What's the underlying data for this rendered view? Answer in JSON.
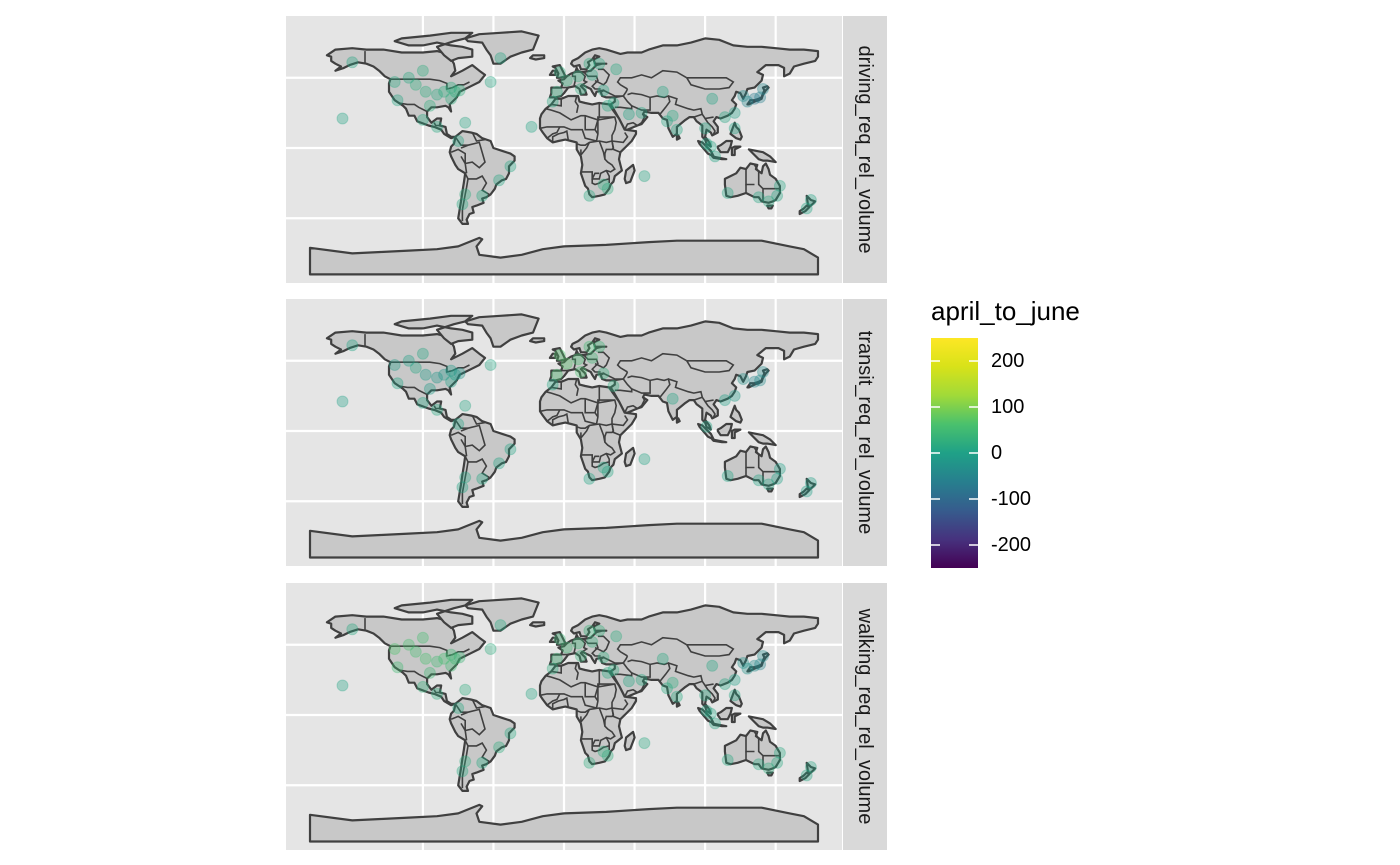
{
  "chart_data": {
    "type": "scatter",
    "subtype": "faceted-world-map-points",
    "facets": [
      {
        "label": "driving_req_rel_volume"
      },
      {
        "label": "transit_req_rel_volume"
      },
      {
        "label": "walking_req_rel_volume"
      }
    ],
    "color_scale": {
      "title": "april_to_june",
      "palette": "viridis",
      "limits": [
        -250,
        250
      ],
      "breaks": [
        200,
        100,
        0,
        -100,
        -200
      ],
      "break_labels": [
        "200",
        "100",
        "0",
        "-100",
        "-200"
      ]
    },
    "colors": {
      "panel_background": "#e5e5e5",
      "strip_background": "#d9d9d9",
      "land_fill": "#c8c8c8",
      "land_outline": "#404040",
      "grid": "#ffffff"
    },
    "point_alpha": 0.35,
    "series": [
      {
        "name": "driving_req_rel_volume",
        "points": [
          [
            -105,
            45,
            25
          ],
          [
            -98,
            40,
            20
          ],
          [
            -90,
            38,
            18
          ],
          [
            -120,
            47,
            15
          ],
          [
            -85,
            40,
            22
          ],
          [
            -77,
            40,
            30
          ],
          [
            -74,
            41,
            25
          ],
          [
            -80,
            35,
            20
          ],
          [
            -95,
            30,
            25
          ],
          [
            -118,
            34,
            10
          ],
          [
            -110,
            50,
            15
          ],
          [
            -80,
            43,
            20
          ],
          [
            -100,
            55,
            20
          ],
          [
            -100,
            20,
            15
          ],
          [
            -90,
            15,
            15
          ],
          [
            -70,
            18,
            10
          ],
          [
            -75,
            5,
            10
          ],
          [
            -46,
            -23,
            10
          ],
          [
            -58,
            -34,
            15
          ],
          [
            -70,
            -33,
            20
          ],
          [
            -72,
            -40,
            15
          ],
          [
            -38,
            -13,
            10
          ],
          [
            -157,
            21,
            5
          ],
          [
            -150,
            61,
            10
          ],
          [
            -52,
            47,
            10
          ],
          [
            -45,
            64,
            10
          ],
          [
            -5,
            40,
            25
          ],
          [
            2,
            48,
            30
          ],
          [
            10,
            51,
            25
          ],
          [
            12,
            42,
            20
          ],
          [
            -3,
            54,
            25
          ],
          [
            20,
            52,
            15
          ],
          [
            18,
            60,
            20
          ],
          [
            25,
            60,
            15
          ],
          [
            28,
            41,
            10
          ],
          [
            35,
            32,
            15
          ],
          [
            46,
            24,
            5
          ],
          [
            55,
            25,
            10
          ],
          [
            31,
            30,
            15
          ],
          [
            -23,
            15,
            5
          ],
          [
            -8,
            33,
            15
          ],
          [
            28,
            -26,
            20
          ],
          [
            18,
            -34,
            15
          ],
          [
            31,
            -29,
            20
          ],
          [
            57,
            -20,
            10
          ],
          [
            77,
            23,
            15
          ],
          [
            73,
            19,
            10
          ],
          [
            80,
            13,
            10
          ],
          [
            100,
            14,
            10
          ],
          [
            101,
            3,
            5
          ],
          [
            104,
            1,
            10
          ],
          [
            107,
            -6,
            5
          ],
          [
            121,
            14,
            5
          ],
          [
            121,
            25,
            0
          ],
          [
            114,
            22,
            10
          ],
          [
            127,
            37,
            -40
          ],
          [
            139,
            36,
            -60
          ],
          [
            135,
            35,
            -70
          ],
          [
            130,
            33,
            -50
          ],
          [
            141,
            42,
            -50
          ],
          [
            151,
            -34,
            10
          ],
          [
            145,
            -38,
            15
          ],
          [
            153,
            -27,
            10
          ],
          [
            138,
            -35,
            10
          ],
          [
            116,
            -32,
            10
          ],
          [
            175,
            -37,
            5
          ],
          [
            172,
            -43,
            5
          ],
          [
            105,
            35,
            5
          ],
          [
            70,
            40,
            10
          ],
          [
            37,
            56,
            15
          ]
        ]
      },
      {
        "name": "transit_req_rel_volume",
        "points": [
          [
            -105,
            45,
            10
          ],
          [
            -98,
            40,
            -10
          ],
          [
            -90,
            38,
            -20
          ],
          [
            -120,
            47,
            -10
          ],
          [
            -85,
            40,
            -20
          ],
          [
            -77,
            40,
            -10
          ],
          [
            -74,
            41,
            -20
          ],
          [
            -80,
            35,
            0
          ],
          [
            -95,
            30,
            -10
          ],
          [
            -118,
            34,
            5
          ],
          [
            -110,
            50,
            0
          ],
          [
            -80,
            43,
            -10
          ],
          [
            -100,
            55,
            10
          ],
          [
            -100,
            20,
            10
          ],
          [
            -90,
            15,
            15
          ],
          [
            -70,
            18,
            10
          ],
          [
            -75,
            5,
            5
          ],
          [
            -46,
            -23,
            5
          ],
          [
            -58,
            -34,
            10
          ],
          [
            -70,
            -33,
            10
          ],
          [
            -72,
            -40,
            5
          ],
          [
            -38,
            -13,
            5
          ],
          [
            -157,
            21,
            0
          ],
          [
            -150,
            61,
            5
          ],
          [
            -52,
            47,
            10
          ],
          [
            -5,
            40,
            60
          ],
          [
            2,
            48,
            70
          ],
          [
            10,
            51,
            55
          ],
          [
            12,
            42,
            60
          ],
          [
            -3,
            54,
            65
          ],
          [
            20,
            52,
            45
          ],
          [
            18,
            60,
            50
          ],
          [
            25,
            60,
            40
          ],
          [
            28,
            41,
            30
          ],
          [
            35,
            32,
            20
          ],
          [
            -8,
            33,
            10
          ],
          [
            28,
            -26,
            10
          ],
          [
            18,
            -34,
            5
          ],
          [
            31,
            -29,
            10
          ],
          [
            57,
            -20,
            5
          ],
          [
            77,
            23,
            5
          ],
          [
            101,
            3,
            5
          ],
          [
            114,
            22,
            0
          ],
          [
            121,
            25,
            -10
          ],
          [
            127,
            37,
            -30
          ],
          [
            139,
            36,
            -40
          ],
          [
            135,
            35,
            -50
          ],
          [
            141,
            42,
            -40
          ],
          [
            151,
            -34,
            0
          ],
          [
            145,
            -38,
            5
          ],
          [
            153,
            -27,
            0
          ],
          [
            138,
            -35,
            5
          ],
          [
            116,
            -32,
            5
          ],
          [
            175,
            -37,
            0
          ],
          [
            172,
            -43,
            0
          ]
        ]
      },
      {
        "name": "walking_req_rel_volume",
        "points": [
          [
            -105,
            45,
            55
          ],
          [
            -98,
            40,
            60
          ],
          [
            -90,
            38,
            50
          ],
          [
            -120,
            47,
            65
          ],
          [
            -85,
            40,
            55
          ],
          [
            -77,
            40,
            45
          ],
          [
            -74,
            41,
            40
          ],
          [
            -80,
            35,
            50
          ],
          [
            -95,
            30,
            45
          ],
          [
            -118,
            34,
            50
          ],
          [
            -110,
            50,
            60
          ],
          [
            -80,
            43,
            45
          ],
          [
            -100,
            55,
            55
          ],
          [
            -100,
            20,
            30
          ],
          [
            -90,
            15,
            25
          ],
          [
            -70,
            18,
            20
          ],
          [
            -75,
            5,
            15
          ],
          [
            -46,
            -23,
            20
          ],
          [
            -58,
            -34,
            15
          ],
          [
            -70,
            -33,
            20
          ],
          [
            -72,
            -40,
            15
          ],
          [
            -38,
            -13,
            15
          ],
          [
            -157,
            21,
            5
          ],
          [
            -150,
            61,
            15
          ],
          [
            -52,
            47,
            20
          ],
          [
            -45,
            64,
            15
          ],
          [
            -5,
            40,
            40
          ],
          [
            2,
            48,
            45
          ],
          [
            10,
            51,
            40
          ],
          [
            12,
            42,
            35
          ],
          [
            -3,
            54,
            40
          ],
          [
            20,
            52,
            30
          ],
          [
            18,
            60,
            35
          ],
          [
            25,
            60,
            30
          ],
          [
            28,
            41,
            25
          ],
          [
            35,
            32,
            20
          ],
          [
            46,
            24,
            10
          ],
          [
            55,
            25,
            15
          ],
          [
            31,
            30,
            15
          ],
          [
            -23,
            15,
            10
          ],
          [
            -8,
            33,
            20
          ],
          [
            28,
            -26,
            25
          ],
          [
            18,
            -34,
            20
          ],
          [
            31,
            -29,
            25
          ],
          [
            57,
            -20,
            15
          ],
          [
            77,
            23,
            20
          ],
          [
            73,
            19,
            15
          ],
          [
            80,
            13,
            15
          ],
          [
            100,
            14,
            15
          ],
          [
            101,
            3,
            10
          ],
          [
            104,
            1,
            10
          ],
          [
            107,
            -6,
            10
          ],
          [
            121,
            14,
            10
          ],
          [
            121,
            25,
            0
          ],
          [
            114,
            22,
            10
          ],
          [
            127,
            37,
            -30
          ],
          [
            139,
            36,
            -50
          ],
          [
            135,
            35,
            -40
          ],
          [
            130,
            33,
            -30
          ],
          [
            141,
            42,
            -40
          ],
          [
            151,
            -34,
            15
          ],
          [
            145,
            -38,
            20
          ],
          [
            153,
            -27,
            15
          ],
          [
            138,
            -35,
            15
          ],
          [
            116,
            -32,
            15
          ],
          [
            175,
            -37,
            10
          ],
          [
            172,
            -43,
            10
          ],
          [
            105,
            35,
            10
          ],
          [
            70,
            40,
            15
          ],
          [
            37,
            56,
            20
          ]
        ]
      }
    ],
    "point_fields": [
      "longitude",
      "latitude",
      "april_to_june"
    ]
  }
}
